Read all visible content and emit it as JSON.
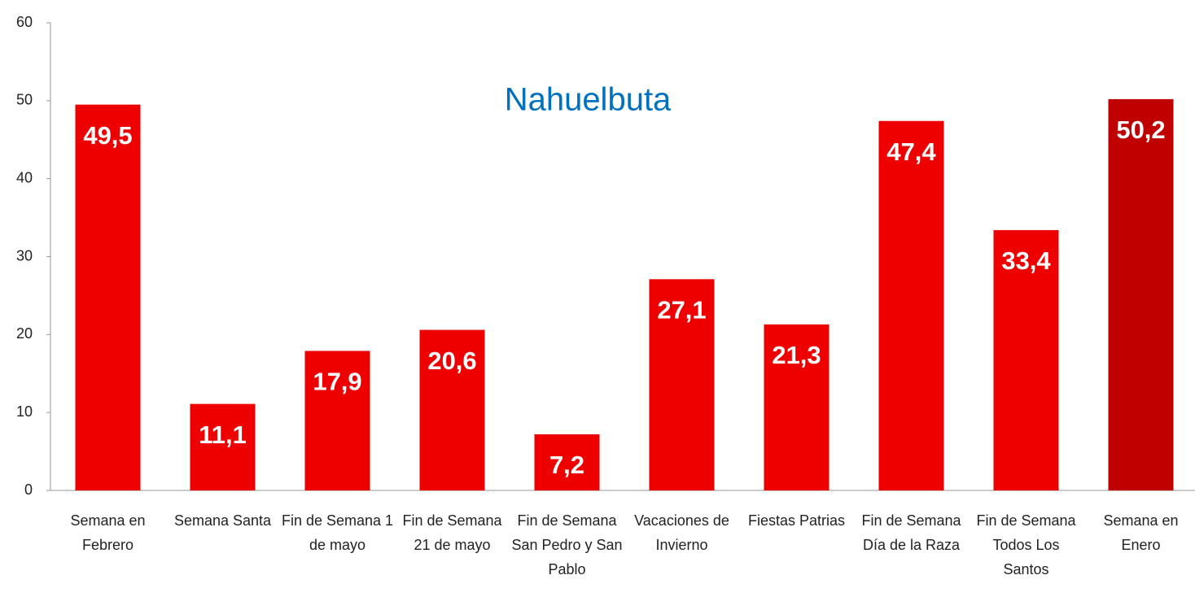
{
  "chart_data": {
    "type": "bar",
    "title": "Nahuelbuta",
    "categories": [
      "Semana en Febrero",
      "Semana Santa",
      "Fin de Semana 1 de mayo",
      "Fin de Semana 21 de mayo",
      "Fin de Semana San Pedro y San Pablo",
      "Vacaciones de Invierno",
      "Fiestas Patrias",
      "Fin de Semana Día de la Raza",
      "Fin de Semana Todos Los Santos",
      "Semana en Enero"
    ],
    "values": [
      49.5,
      11.1,
      17.9,
      20.6,
      7.2,
      27.1,
      21.3,
      47.4,
      33.4,
      50.2
    ],
    "value_labels": [
      "49,5",
      "11,1",
      "17,9",
      "20,6",
      "7,2",
      "27,1",
      "21,3",
      "47,4",
      "33,4",
      "50,2"
    ],
    "colors": [
      "#ee0000",
      "#ee0000",
      "#ee0000",
      "#ee0000",
      "#ee0000",
      "#ee0000",
      "#ee0000",
      "#ee0000",
      "#ee0000",
      "#c00000"
    ],
    "ylim": [
      0,
      60
    ],
    "yticks": [
      0,
      10,
      20,
      30,
      40,
      50,
      60
    ],
    "grid": false
  }
}
